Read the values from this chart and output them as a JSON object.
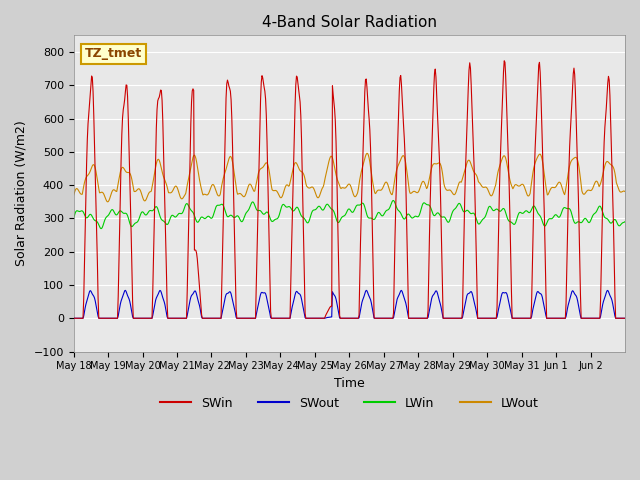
{
  "title": "4-Band Solar Radiation",
  "xlabel": "Time",
  "ylabel": "Solar Radiation (W/m2)",
  "ylim": [
    -100,
    850
  ],
  "yticks": [
    -100,
    0,
    100,
    200,
    300,
    400,
    500,
    600,
    700,
    800
  ],
  "n_days": 16,
  "annotation_text": "TZ_tmet",
  "annotation_color": "#cc9900",
  "annotation_bg": "#ffffcc",
  "colors": {
    "SWin": "#cc0000",
    "SWout": "#0000cc",
    "LWin": "#00cc00",
    "LWout": "#cc8800"
  },
  "bg_color": "#e8e8e8",
  "grid_color": "#ffffff",
  "x_tick_labels": [
    "May 18",
    "May 19",
    "May 20",
    "May 21",
    "May 22",
    "May 23",
    "May 24",
    "May 25",
    "May 26",
    "May 27",
    "May 28",
    "May 29",
    "May 30",
    "May 31",
    "Jun 1",
    "Jun 2"
  ]
}
